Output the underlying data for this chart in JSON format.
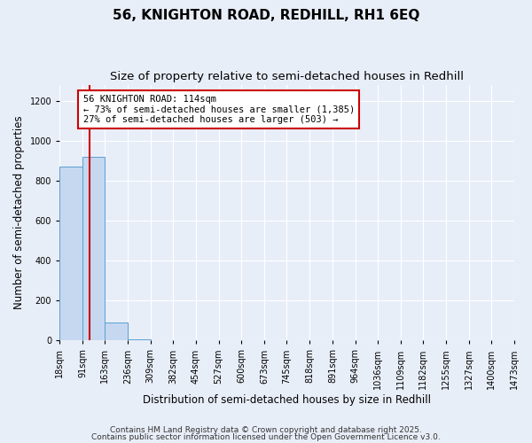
{
  "title1": "56, KNIGHTON ROAD, REDHILL, RH1 6EQ",
  "title2": "Size of property relative to semi-detached houses in Redhill",
  "xlabel": "Distribution of semi-detached houses by size in Redhill",
  "ylabel": "Number of semi-detached properties",
  "property_size": 114,
  "bin_edges": [
    18,
    91,
    163,
    236,
    309,
    382,
    454,
    527,
    600,
    673,
    745,
    818,
    891,
    964,
    1036,
    1109,
    1182,
    1255,
    1327,
    1400,
    1473
  ],
  "bar_heights": [
    870,
    920,
    90,
    5,
    0,
    0,
    0,
    0,
    0,
    0,
    0,
    0,
    0,
    0,
    0,
    0,
    0,
    0,
    0,
    0
  ],
  "bar_color": "#c5d8f0",
  "bar_edge_color": "#5a9fd4",
  "red_line_color": "#cc0000",
  "annotation_line1": "56 KNIGHTON ROAD: 114sqm",
  "annotation_line2": "← 73% of semi-detached houses are smaller (1,385)",
  "annotation_line3": "27% of semi-detached houses are larger (503) →",
  "annotation_box_color": "#ffffff",
  "annotation_box_edge": "#cc0000",
  "ylim": [
    0,
    1280
  ],
  "yticks": [
    0,
    200,
    400,
    600,
    800,
    1000,
    1200
  ],
  "footnote1": "Contains HM Land Registry data © Crown copyright and database right 2025.",
  "footnote2": "Contains public sector information licensed under the Open Government Licence v3.0.",
  "bg_color": "#e8eef8",
  "grid_color": "#ffffff",
  "title1_fontsize": 11,
  "title2_fontsize": 9.5,
  "annot_fontsize": 7.5,
  "tick_fontsize": 7,
  "label_fontsize": 8.5,
  "footnote_fontsize": 6.5
}
